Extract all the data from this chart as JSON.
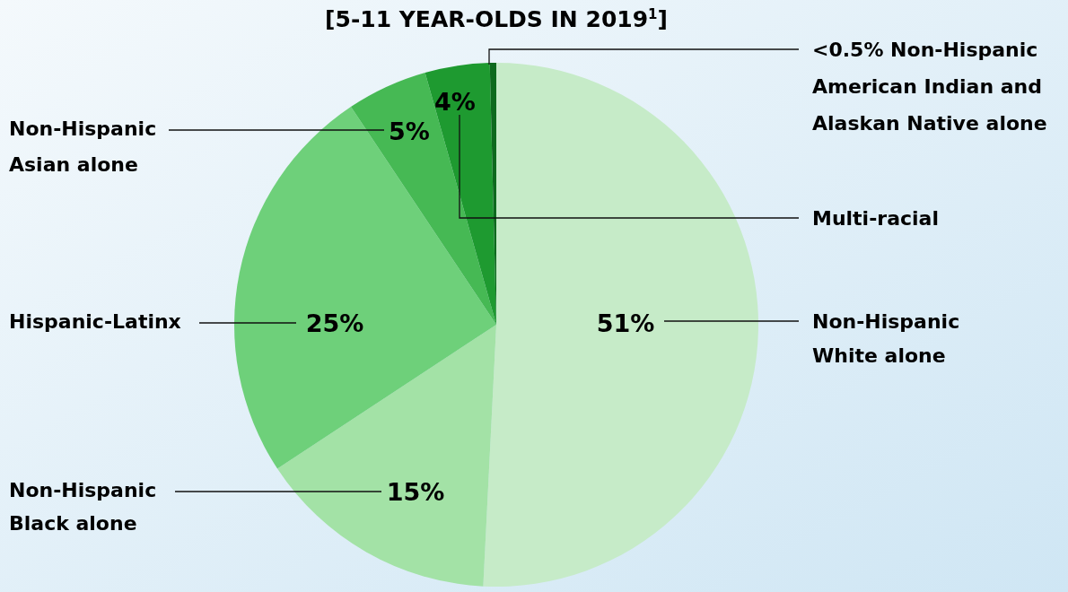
{
  "chart_data": {
    "type": "pie",
    "title": "[5-11 YEAR-OLDS IN 2019$^{1}$]",
    "categories": [
      "Non-Hispanic White alone",
      "Non-Hispanic Black alone",
      "Hispanic-Latinx",
      "Non-Hispanic Asian alone",
      "Multi-racial",
      "<0.5% Non-Hispanic American Indian and Alaskan Native alone"
    ],
    "values": [
      51,
      15,
      25,
      5,
      4,
      0.4
    ],
    "value_labels": [
      "51%",
      "15%",
      "25%",
      "5%",
      "4%",
      null
    ],
    "colors": [
      "#c6ebc8",
      "#a3e2a6",
      "#6ed07a",
      "#46b954",
      "#1e9a30",
      "#0e6a1e"
    ]
  }
}
